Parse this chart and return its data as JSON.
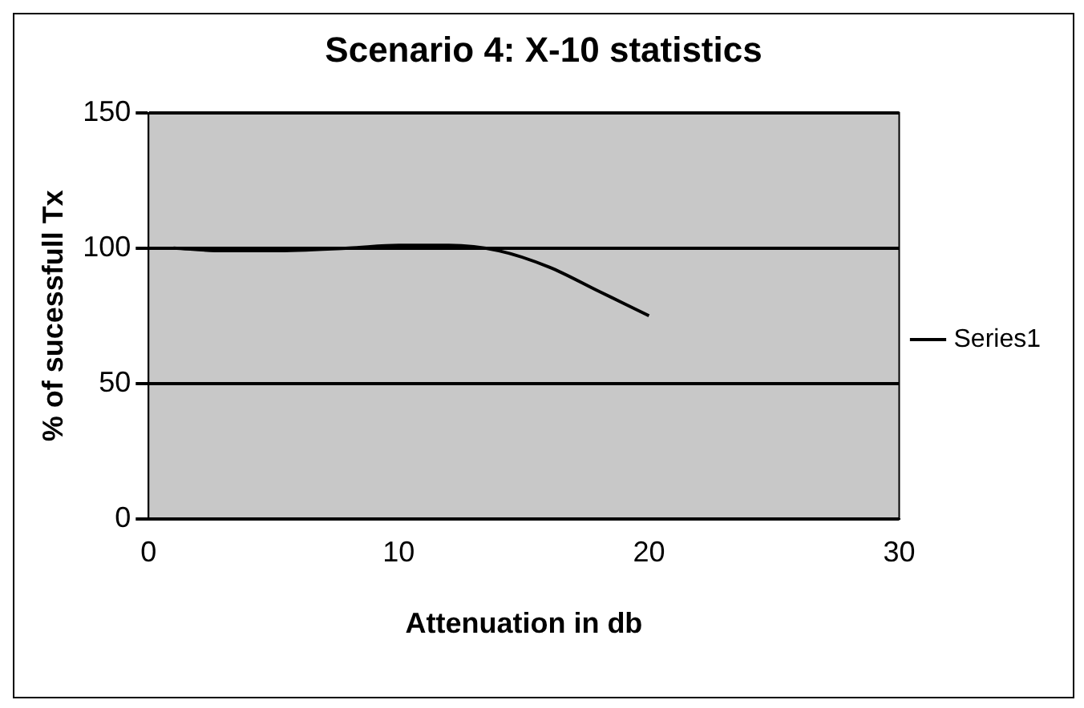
{
  "chart_data": {
    "type": "line",
    "title": "Scenario 4: X-10 statistics",
    "xlabel": "Attenuation in db",
    "ylabel": "% of sucessfull Tx",
    "x": [
      1,
      3,
      5,
      8,
      10,
      12,
      14,
      16,
      18,
      20
    ],
    "series": [
      {
        "name": "Series1",
        "color": "#000000",
        "values": [
          100,
          99,
          99,
          100,
          101,
          101,
          99,
          93,
          84,
          75
        ]
      }
    ],
    "xlim": [
      0,
      30
    ],
    "xticks": [
      0,
      10,
      20,
      30
    ],
    "ylim": [
      0,
      150
    ],
    "yticks": [
      0,
      50,
      100,
      150
    ],
    "grid": "y",
    "legend": "right",
    "marker": "none",
    "line_style": "solid"
  }
}
